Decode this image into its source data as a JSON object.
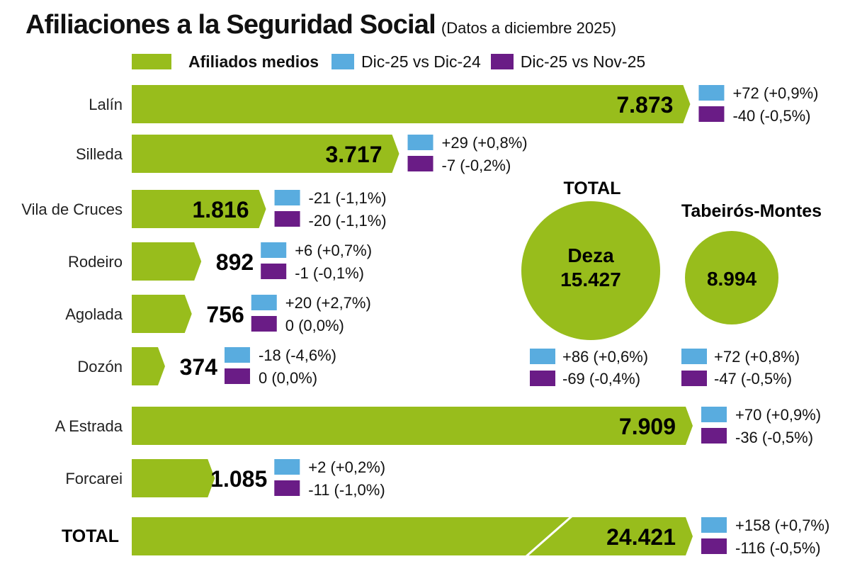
{
  "title": "Afiliaciones a la Seguridad Social",
  "subtitle": "(Datos a diciembre 2025)",
  "legend": {
    "afiliados": "Afiliados medios",
    "yoy": "Dic-25 vs Dic-24",
    "mom": "Dic-25 vs Nov-25"
  },
  "colors": {
    "bar": "#98bd1c",
    "yoy": "#59acdf",
    "mom": "#6a1c86"
  },
  "chart_data": {
    "type": "bar",
    "orientation": "horizontal",
    "categories": [
      "Lalín",
      "Silleda",
      "Vila de Cruces",
      "Rodeiro",
      "Agolada",
      "Dozón",
      "A Estrada",
      "Forcarei",
      "TOTAL"
    ],
    "values": [
      7873,
      3717,
      1816,
      892,
      756,
      374,
      7909,
      1085,
      24421
    ],
    "value_labels": [
      "7.873",
      "3.717",
      "1.816",
      "892",
      "756",
      "374",
      "7.909",
      "1.085",
      "24.421"
    ],
    "yoy_labels": [
      "+72 (+0,9%)",
      "+29 (+0,8%)",
      "-21 (-1,1%)",
      "+6 (+0,7%)",
      "+20 (+2,7%)",
      "-18 (-4,6%)",
      "+70 (+0,9%)",
      "+2 (+0,2%)",
      "+158 (+0,7%)"
    ],
    "mom_labels": [
      "-40 (-0,5%)",
      "-7 (-0,2%)",
      "-20 (-1,1%)",
      "-1 (-0,1%)",
      "0 (0,0%)",
      "0 (0,0%)",
      "-36 (-0,5%)",
      "-11 (-1,0%)",
      "-116 (-0,5%)"
    ],
    "legend_position": "top",
    "grid": false
  },
  "circles": {
    "heading": "TOTAL",
    "items": [
      {
        "title": "Deza",
        "value_label": "15.427",
        "value": 15427,
        "yoy": "+86 (+0,6%)",
        "mom": "-69 (-0,4%)"
      },
      {
        "title": "Tabeirós-Montes",
        "value_label": "8.994",
        "value": 8994,
        "yoy": "+72 (+0,8%)",
        "mom": "-47 (-0,5%)"
      }
    ]
  }
}
